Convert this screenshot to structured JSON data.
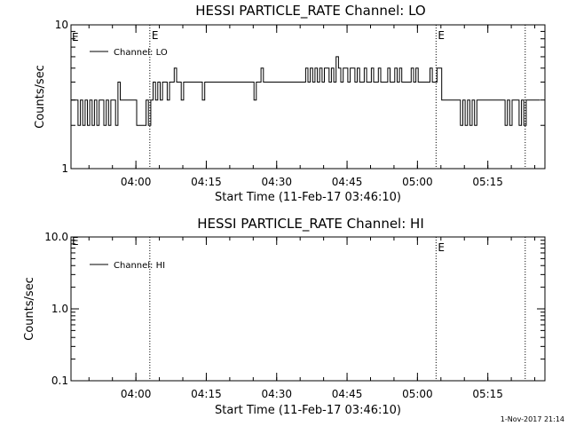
{
  "chart_data": [
    {
      "type": "line",
      "title": "HESSI PARTICLE_RATE Channel: LO",
      "xlabel": "Start Time (11-Feb-17 03:46:10)",
      "ylabel": "Counts/sec",
      "yscale": "log",
      "ylim": [
        1,
        10
      ],
      "ytick_values": [
        1,
        10
      ],
      "ytick_labels": [
        "1",
        "10"
      ],
      "xlim_minutes": [
        0,
        101
      ],
      "xtick_minutes": [
        13.833,
        28.833,
        43.833,
        58.833,
        73.833,
        88.833
      ],
      "xtick_labels": [
        "04:00",
        "04:15",
        "04:30",
        "04:45",
        "05:00",
        "05:15"
      ],
      "legend": {
        "label": "Channel: LO",
        "position": "top-left"
      },
      "event_markers": [
        {
          "minute": 16.8,
          "label": "E"
        },
        {
          "minute": 77.8,
          "label": "E"
        },
        {
          "minute": 96.8,
          "label": ""
        }
      ],
      "edge_label": "E",
      "series": [
        {
          "name": "Channel: LO",
          "x": [
            0,
            1,
            1.5,
            2,
            2.5,
            3,
            3.5,
            4,
            4.5,
            5,
            5.5,
            6,
            6.5,
            7,
            7.5,
            8,
            8.5,
            9,
            9.5,
            10,
            10.5,
            11,
            11.5,
            12,
            12.5,
            13,
            13.5,
            14,
            15,
            15.5,
            16,
            16.5,
            17,
            17.5,
            18,
            18.5,
            19,
            19.5,
            20,
            20.5,
            21,
            21.5,
            22,
            22.5,
            23,
            23.5,
            24,
            24.5,
            25,
            25.5,
            26,
            26.5,
            27,
            27.5,
            28,
            28.5,
            29,
            29.5,
            30,
            31,
            32,
            33,
            34,
            35,
            36,
            37,
            38,
            38.5,
            39,
            39.5,
            40,
            40.5,
            41,
            41.5,
            42,
            42.5,
            43,
            43.5,
            44,
            44.5,
            45,
            45.5,
            46,
            46.5,
            47,
            47.5,
            48,
            48.5,
            49,
            49.5,
            50,
            50.5,
            51,
            51.5,
            52,
            52.5,
            53,
            53.5,
            54,
            54.5,
            55,
            55.5,
            56,
            56.5,
            57,
            57.5,
            58,
            58.5,
            59,
            59.5,
            60,
            60.5,
            61,
            61.5,
            62,
            62.5,
            63,
            63.5,
            64,
            64.5,
            65,
            65.5,
            66,
            66.5,
            67,
            67.5,
            68,
            68.5,
            69,
            69.5,
            70,
            70.5,
            71,
            71.5,
            72,
            72.5,
            73,
            73.5,
            74,
            74.5,
            75,
            75.5,
            76,
            76.5,
            77,
            77.5,
            78,
            79,
            80,
            81,
            81.5,
            82,
            82.5,
            83,
            83.5,
            84,
            84.5,
            85,
            85.5,
            86,
            86.5,
            87,
            87.5,
            88,
            89,
            90,
            91,
            92,
            92.5,
            93,
            93.5,
            94,
            94.5,
            95,
            95.5,
            96,
            96.5,
            97,
            98,
            99,
            100
          ],
          "y": [
            3,
            3,
            2,
            3,
            2,
            3,
            2,
            3,
            2,
            3,
            2,
            3,
            3,
            2,
            3,
            2,
            3,
            3,
            2,
            4,
            3,
            3,
            3,
            3,
            3,
            3,
            3,
            2,
            2,
            2,
            3,
            2,
            3,
            4,
            3,
            4,
            3,
            4,
            4,
            3,
            4,
            4,
            5,
            4,
            4,
            3,
            4,
            4,
            4,
            4,
            4,
            4,
            4,
            4,
            3,
            4,
            4,
            4,
            4,
            4,
            4,
            4,
            4,
            4,
            4,
            4,
            4,
            4,
            3,
            4,
            4,
            5,
            4,
            4,
            4,
            4,
            4,
            4,
            4,
            4,
            4,
            4,
            4,
            4,
            4,
            4,
            4,
            4,
            4,
            4,
            5,
            4,
            5,
            4,
            5,
            4,
            5,
            4,
            5,
            5,
            4,
            5,
            4,
            6,
            5,
            4,
            5,
            5,
            4,
            5,
            5,
            4,
            5,
            4,
            4,
            5,
            4,
            4,
            5,
            4,
            4,
            5,
            4,
            4,
            4,
            5,
            4,
            4,
            5,
            4,
            5,
            4,
            4,
            4,
            4,
            5,
            4,
            5,
            4,
            4,
            4,
            4,
            4,
            5,
            4,
            4,
            5,
            3,
            3,
            3,
            3,
            3,
            3,
            2,
            3,
            2,
            3,
            2,
            3,
            2,
            3,
            3,
            3,
            3,
            3,
            3,
            3,
            3,
            2,
            3,
            2,
            3,
            3,
            3,
            2,
            3,
            2,
            3,
            3,
            3,
            3
          ]
        }
      ]
    },
    {
      "type": "line",
      "title": "HESSI PARTICLE_RATE Channel: HI",
      "xlabel": "Start Time (11-Feb-17 03:46:10)",
      "ylabel": "Counts/sec",
      "yscale": "log",
      "ylim": [
        0.1,
        10
      ],
      "ytick_values": [
        0.1,
        1,
        10
      ],
      "ytick_labels": [
        "0.1",
        "1.0",
        "10.0"
      ],
      "xlim_minutes": [
        0,
        101
      ],
      "xtick_minutes": [
        13.833,
        28.833,
        43.833,
        58.833,
        73.833,
        88.833
      ],
      "xtick_labels": [
        "04:00",
        "04:15",
        "04:30",
        "04:45",
        "05:00",
        "05:15"
      ],
      "legend": {
        "label": "Channel: HI",
        "position": "top-left"
      },
      "event_markers": [
        {
          "minute": 16.8,
          "label": ""
        },
        {
          "minute": 77.8,
          "label": "E"
        },
        {
          "minute": 96.8,
          "label": ""
        }
      ],
      "edge_label": "E",
      "series": [
        {
          "name": "Channel: HI",
          "x": [],
          "y": []
        }
      ]
    }
  ],
  "footer": {
    "timestamp": "1-Nov-2017 21:14"
  }
}
